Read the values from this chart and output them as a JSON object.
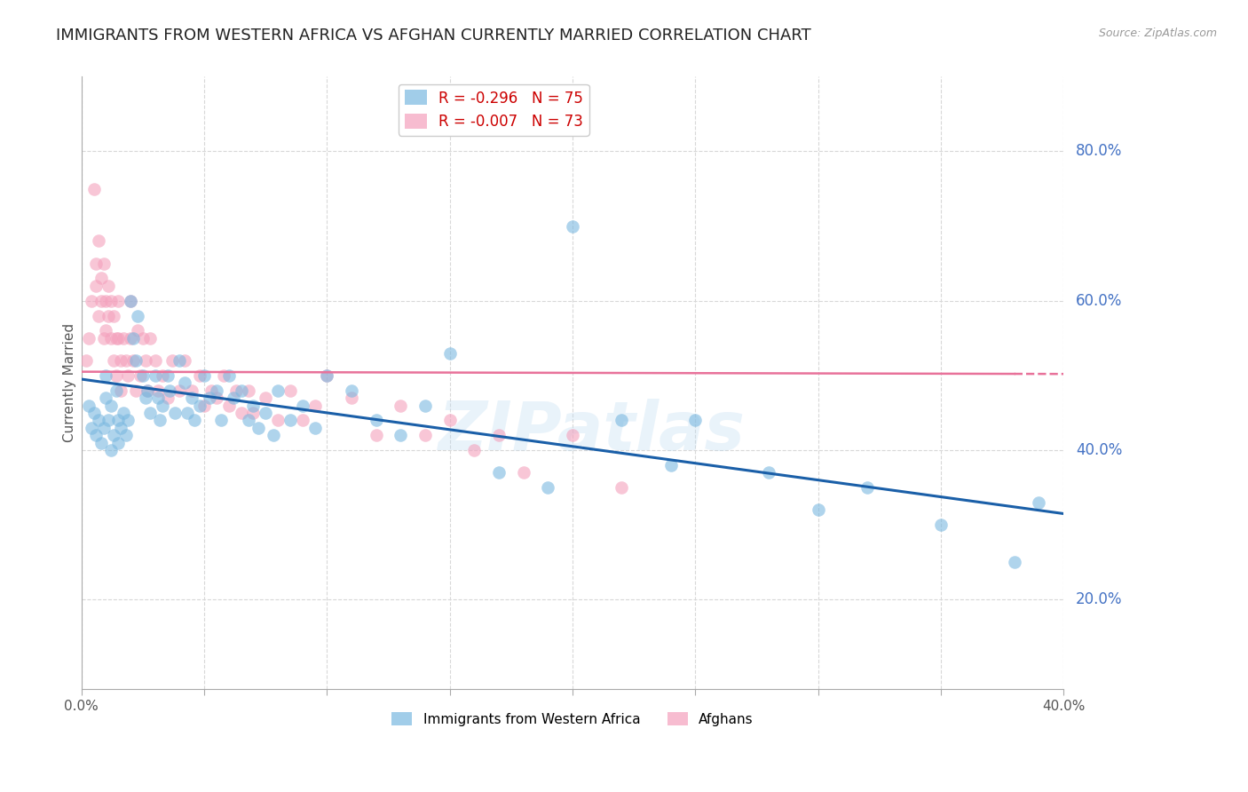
{
  "title": "IMMIGRANTS FROM WESTERN AFRICA VS AFGHAN CURRENTLY MARRIED CORRELATION CHART",
  "source": "Source: ZipAtlas.com",
  "ylabel": "Currently Married",
  "legend_series": [
    {
      "label": "Immigrants from Western Africa",
      "color": "#7ab8e0",
      "R": -0.296,
      "N": 75
    },
    {
      "label": "Afghans",
      "color": "#f4a0bc",
      "R": -0.007,
      "N": 73
    }
  ],
  "right_ytick_color": "#4472c4",
  "right_ytick_labels": [
    "20.0%",
    "40.0%",
    "60.0%",
    "80.0%"
  ],
  "right_ytick_values": [
    0.2,
    0.4,
    0.6,
    0.8
  ],
  "xlim": [
    0.0,
    0.4
  ],
  "ylim": [
    0.08,
    0.9
  ],
  "watermark": "ZIPatlas",
  "title_fontsize": 13,
  "blue_scatter": {
    "x": [
      0.003,
      0.004,
      0.005,
      0.006,
      0.007,
      0.008,
      0.009,
      0.01,
      0.01,
      0.011,
      0.012,
      0.012,
      0.013,
      0.014,
      0.015,
      0.015,
      0.016,
      0.017,
      0.018,
      0.019,
      0.02,
      0.021,
      0.022,
      0.023,
      0.025,
      0.026,
      0.027,
      0.028,
      0.03,
      0.031,
      0.032,
      0.033,
      0.035,
      0.036,
      0.038,
      0.04,
      0.042,
      0.043,
      0.045,
      0.046,
      0.048,
      0.05,
      0.052,
      0.055,
      0.057,
      0.06,
      0.062,
      0.065,
      0.068,
      0.07,
      0.072,
      0.075,
      0.078,
      0.08,
      0.085,
      0.09,
      0.095,
      0.1,
      0.11,
      0.12,
      0.13,
      0.14,
      0.15,
      0.17,
      0.19,
      0.2,
      0.22,
      0.24,
      0.25,
      0.28,
      0.3,
      0.32,
      0.35,
      0.38,
      0.39
    ],
    "y": [
      0.46,
      0.43,
      0.45,
      0.42,
      0.44,
      0.41,
      0.43,
      0.47,
      0.5,
      0.44,
      0.46,
      0.4,
      0.42,
      0.48,
      0.44,
      0.41,
      0.43,
      0.45,
      0.42,
      0.44,
      0.6,
      0.55,
      0.52,
      0.58,
      0.5,
      0.47,
      0.48,
      0.45,
      0.5,
      0.47,
      0.44,
      0.46,
      0.5,
      0.48,
      0.45,
      0.52,
      0.49,
      0.45,
      0.47,
      0.44,
      0.46,
      0.5,
      0.47,
      0.48,
      0.44,
      0.5,
      0.47,
      0.48,
      0.44,
      0.46,
      0.43,
      0.45,
      0.42,
      0.48,
      0.44,
      0.46,
      0.43,
      0.5,
      0.48,
      0.44,
      0.42,
      0.46,
      0.53,
      0.37,
      0.35,
      0.7,
      0.44,
      0.38,
      0.44,
      0.37,
      0.32,
      0.35,
      0.3,
      0.25,
      0.33
    ]
  },
  "pink_scatter": {
    "x": [
      0.002,
      0.003,
      0.004,
      0.005,
      0.006,
      0.006,
      0.007,
      0.007,
      0.008,
      0.008,
      0.009,
      0.009,
      0.01,
      0.01,
      0.011,
      0.011,
      0.012,
      0.012,
      0.013,
      0.013,
      0.014,
      0.014,
      0.015,
      0.015,
      0.016,
      0.016,
      0.017,
      0.018,
      0.019,
      0.02,
      0.02,
      0.021,
      0.022,
      0.023,
      0.024,
      0.025,
      0.026,
      0.027,
      0.028,
      0.03,
      0.031,
      0.033,
      0.035,
      0.037,
      0.04,
      0.042,
      0.045,
      0.048,
      0.05,
      0.053,
      0.055,
      0.058,
      0.06,
      0.063,
      0.065,
      0.068,
      0.07,
      0.075,
      0.08,
      0.085,
      0.09,
      0.095,
      0.1,
      0.11,
      0.12,
      0.13,
      0.14,
      0.15,
      0.16,
      0.17,
      0.18,
      0.2,
      0.22
    ],
    "y": [
      0.52,
      0.55,
      0.6,
      0.75,
      0.65,
      0.62,
      0.68,
      0.58,
      0.63,
      0.6,
      0.55,
      0.65,
      0.6,
      0.56,
      0.62,
      0.58,
      0.55,
      0.6,
      0.52,
      0.58,
      0.55,
      0.5,
      0.6,
      0.55,
      0.52,
      0.48,
      0.55,
      0.52,
      0.5,
      0.6,
      0.55,
      0.52,
      0.48,
      0.56,
      0.5,
      0.55,
      0.52,
      0.48,
      0.55,
      0.52,
      0.48,
      0.5,
      0.47,
      0.52,
      0.48,
      0.52,
      0.48,
      0.5,
      0.46,
      0.48,
      0.47,
      0.5,
      0.46,
      0.48,
      0.45,
      0.48,
      0.45,
      0.47,
      0.44,
      0.48,
      0.44,
      0.46,
      0.5,
      0.47,
      0.42,
      0.46,
      0.42,
      0.44,
      0.4,
      0.42,
      0.37,
      0.42,
      0.35
    ]
  },
  "blue_line": {
    "x0": 0.0,
    "x1": 0.4,
    "y0": 0.495,
    "y1": 0.315
  },
  "pink_line_solid": {
    "x0": 0.0,
    "x1": 0.4,
    "y0": 0.505,
    "y1": 0.502
  },
  "grid_color": "#d8d8d8",
  "background_color": "#ffffff",
  "blue_color": "#7ab8e0",
  "pink_color": "#f4a0bc",
  "blue_line_color": "#1a5fa8",
  "pink_line_color": "#e8729a",
  "pink_line_solid_end": 0.4
}
